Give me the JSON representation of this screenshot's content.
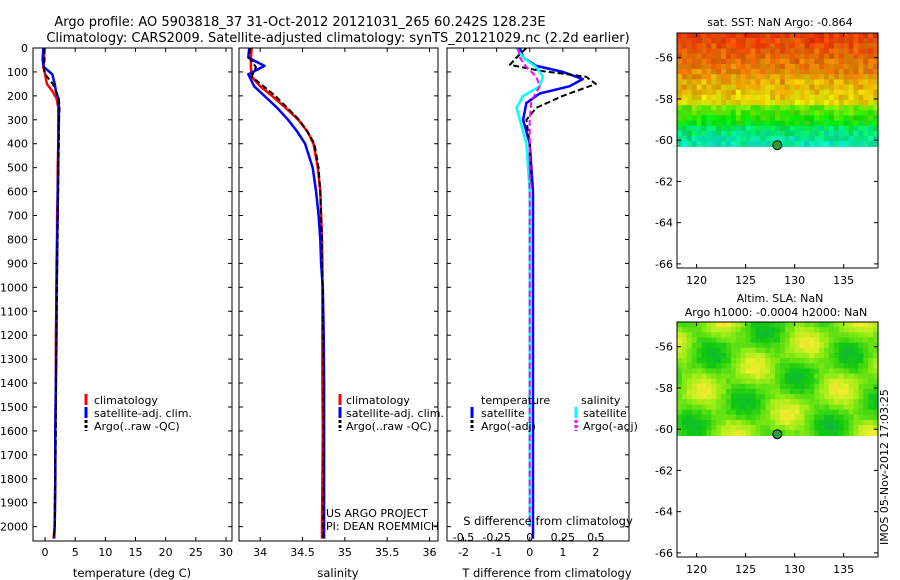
{
  "figure": {
    "title_line1": "Argo profile: AO 5903818_37 31-Oct-2012 20121031_265 60.242S 128.23E",
    "title_line2": "Climatology: CARS2009. Satellite-adjusted climatology: synTS_20121029.nc (2.2d earlier)",
    "timestamp": "IMOS 05-Nov-2012 17:03:25",
    "project_line1": "US ARGO PROJECT",
    "project_line2": "PI: DEAN ROEMMICH"
  },
  "colors": {
    "climatology": "#ff0000",
    "satellite": "#0000ff",
    "argo": "#000000",
    "salinity_satellite": "#00ffff",
    "salinity_argo": "#ff00ff"
  },
  "chart_data": [
    {
      "type": "line",
      "xlabel": "temperature (deg C)",
      "ylabel": "",
      "xlim": [
        -2,
        31
      ],
      "ylim": [
        2060,
        0
      ],
      "xticks": [
        0,
        5,
        10,
        15,
        20,
        25,
        30
      ],
      "yticks": [
        0,
        100,
        200,
        300,
        400,
        500,
        600,
        700,
        800,
        900,
        1000,
        1100,
        1200,
        1300,
        1400,
        1500,
        1600,
        1700,
        1800,
        1900,
        2000
      ],
      "legend": [
        "climatology",
        "satellite-adj. clim.",
        "Argo(..raw -QC)"
      ],
      "series": [
        {
          "name": "climatology",
          "x": [
            -0.1,
            -0.2,
            -0.3,
            0.0,
            0.3,
            1.2,
            1.9,
            2.2,
            2.2,
            2.2,
            2.1,
            2.1,
            2.0,
            2.0,
            1.9,
            1.9,
            1.8,
            1.8,
            1.7,
            1.7,
            1.6,
            1.4
          ],
          "y": [
            0,
            50,
            80,
            110,
            150,
            180,
            210,
            250,
            300,
            400,
            500,
            600,
            700,
            800,
            900,
            1000,
            1200,
            1400,
            1600,
            1800,
            2000,
            2050
          ]
        },
        {
          "name": "satellite-adj. clim.",
          "x": [
            -0.3,
            -0.4,
            -0.2,
            1.2,
            1.6,
            1.8,
            2.2,
            2.3,
            2.3,
            2.2,
            2.2,
            2.1,
            2.1,
            2.0,
            2.0,
            1.9,
            1.9,
            1.8,
            1.7,
            1.7,
            1.6,
            1.5
          ],
          "y": [
            0,
            50,
            80,
            110,
            150,
            180,
            210,
            250,
            300,
            400,
            500,
            600,
            700,
            800,
            900,
            1000,
            1200,
            1400,
            1600,
            1800,
            2000,
            2050
          ]
        },
        {
          "name": "Argo(..raw -QC)",
          "x": [
            -0.1,
            -0.1,
            -0.2,
            0.0,
            1.3,
            1.8,
            2.3,
            2.4,
            2.3,
            2.3,
            2.2,
            2.2,
            2.1,
            2.1,
            2.0,
            2.0,
            1.9,
            1.8,
            1.8,
            1.7,
            1.6,
            1.5
          ],
          "y": [
            0,
            50,
            80,
            110,
            150,
            180,
            210,
            250,
            300,
            400,
            500,
            600,
            700,
            800,
            900,
            1000,
            1200,
            1400,
            1600,
            1800,
            2000,
            2050
          ]
        }
      ]
    },
    {
      "type": "line",
      "xlabel": "salinity",
      "ylabel": "",
      "xlim": [
        33.75,
        36.1
      ],
      "ylim": [
        2060,
        0
      ],
      "xticks": [
        34,
        34.5,
        35,
        35.5,
        36
      ],
      "legend": [
        "climatology",
        "satellite-adj. clim.",
        "Argo(..raw -QC)"
      ],
      "series": [
        {
          "name": "climatology",
          "x": [
            33.9,
            33.89,
            33.89,
            33.9,
            34.0,
            34.14,
            34.3,
            34.45,
            34.56,
            34.63,
            34.68,
            34.71,
            34.72,
            34.73,
            34.735,
            34.735,
            34.735,
            34.735,
            34.74,
            34.735,
            34.73,
            34.73
          ],
          "y": [
            0,
            40,
            80,
            120,
            160,
            200,
            250,
            300,
            350,
            400,
            500,
            600,
            700,
            800,
            900,
            1000,
            1200,
            1400,
            1600,
            1800,
            2000,
            2050
          ]
        },
        {
          "name": "satellite-adj. clim.",
          "x": [
            33.87,
            33.86,
            34.05,
            33.86,
            33.93,
            34.05,
            34.2,
            34.33,
            34.44,
            34.53,
            34.62,
            34.66,
            34.69,
            34.71,
            34.72,
            34.74,
            34.75,
            34.755,
            34.755,
            34.755,
            34.755,
            34.755
          ],
          "y": [
            0,
            40,
            75,
            110,
            160,
            200,
            250,
            300,
            350,
            400,
            500,
            600,
            700,
            800,
            900,
            1000,
            1200,
            1400,
            1600,
            1800,
            2000,
            2050
          ]
        },
        {
          "name": "Argo(..raw -QC)",
          "x": [
            33.88,
            33.87,
            33.95,
            33.9,
            34.04,
            34.18,
            34.32,
            34.46,
            34.56,
            34.64,
            34.69,
            34.71,
            34.72,
            34.73,
            34.73,
            34.74,
            34.745,
            34.75,
            34.75,
            34.75,
            34.745,
            34.745
          ],
          "y": [
            0,
            40,
            80,
            120,
            160,
            200,
            250,
            300,
            350,
            400,
            500,
            600,
            700,
            800,
            900,
            1000,
            1200,
            1400,
            1600,
            1800,
            2000,
            2050
          ]
        }
      ]
    },
    {
      "type": "line",
      "xlabel": "T difference from climatology",
      "xlabel2": "S difference from climatology",
      "xlim": [
        -2.5,
        3
      ],
      "ylim": [
        2060,
        0
      ],
      "xticks": [
        -2,
        -1,
        0,
        1,
        2
      ],
      "xticks_top_values": [
        -0.5,
        -0.25,
        0,
        0.25,
        0.5
      ],
      "xticks_top_labels": [
        "-0.5",
        "-0.25",
        "0",
        "0.25",
        "0.5"
      ],
      "legend_headers": [
        "temperature",
        "salinity"
      ],
      "legend": [
        "satellite",
        "Argo(-adj)",
        "satellite",
        "Argo(-adj)"
      ],
      "series": [
        {
          "name": "satellite",
          "x": [
            -0.3,
            -0.2,
            0.2,
            1.0,
            1.6,
            1.2,
            0.3,
            -0.1,
            -0.2,
            0.0,
            0.1,
            0.1,
            0.1,
            0.1,
            0.1,
            0.1,
            0.1,
            0.1,
            0.1,
            0.1,
            0.1
          ],
          "y": [
            0,
            40,
            75,
            100,
            130,
            160,
            190,
            230,
            300,
            400,
            600,
            800,
            1000,
            1200,
            1400,
            1600,
            1800,
            2000,
            2050,
            2050,
            2050
          ]
        },
        {
          "name": "Argo(-adj)",
          "x": [
            -0.1,
            -0.4,
            -0.6,
            0.3,
            1.7,
            2.0,
            1.0,
            0.2,
            -0.1,
            0.0,
            0.0,
            0.0,
            0.0,
            0.0,
            0.0,
            0.0,
            0.0,
            0.0
          ],
          "y": [
            0,
            40,
            70,
            95,
            120,
            150,
            200,
            250,
            300,
            400,
            600,
            800,
            1000,
            1200,
            1400,
            1600,
            1800,
            2000
          ]
        },
        {
          "name": "satellite",
          "x": [
            -0.4,
            -0.2,
            0.2,
            0.4,
            0.3,
            -0.2,
            -0.4,
            -0.3,
            -0.1,
            0.0,
            0.0,
            0.0,
            0.0,
            0.0,
            0.0
          ],
          "y": [
            0,
            40,
            80,
            120,
            160,
            200,
            250,
            300,
            400,
            600,
            800,
            1000,
            1200,
            1600,
            2000
          ]
        },
        {
          "name": "Argo(-adj)",
          "x": [
            -0.35,
            -0.3,
            -0.1,
            0.2,
            0.3,
            0.05,
            0.0,
            0.0,
            0.0,
            0.0,
            0.0,
            0.0,
            0.0
          ],
          "y": [
            0,
            40,
            80,
            120,
            160,
            220,
            300,
            400,
            600,
            800,
            1000,
            1400,
            2000
          ]
        }
      ]
    },
    {
      "type": "heatmap",
      "title": "sat. SST: NaN Argo: -0.864",
      "xlim": [
        118,
        138.5
      ],
      "ylim": [
        -66.2,
        -54.8
      ],
      "xticks": [
        120,
        125,
        130,
        135
      ],
      "yticks": [
        -56,
        -58,
        -60,
        -62,
        -64,
        -66
      ],
      "data_lat_range": [
        -60.2,
        -54.8
      ],
      "marker": {
        "lon": 128.23,
        "lat": -60.242
      }
    },
    {
      "type": "heatmap",
      "title": "Altim. SLA: NaN",
      "subtitle": "Argo h1000: -0.0004 h2000: NaN",
      "xlim": [
        118,
        138.5
      ],
      "ylim": [
        -66.2,
        -54.8
      ],
      "xticks": [
        120,
        125,
        130,
        135
      ],
      "yticks": [
        -56,
        -58,
        -60,
        -62,
        -64,
        -66
      ],
      "data_lat_range": [
        -60.2,
        -54.8
      ],
      "marker": {
        "lon": 128.23,
        "lat": -60.242
      }
    }
  ]
}
